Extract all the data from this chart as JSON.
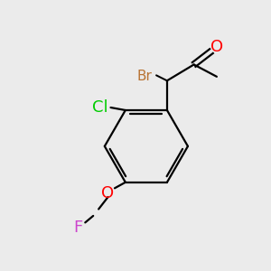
{
  "bg_color": "#ebebeb",
  "bond_color": "#000000",
  "atom_colors": {
    "Br": "#b87333",
    "Cl": "#00cc00",
    "O": "#ff0000",
    "F": "#cc44cc"
  },
  "bond_width": 1.6,
  "font_size": 13
}
